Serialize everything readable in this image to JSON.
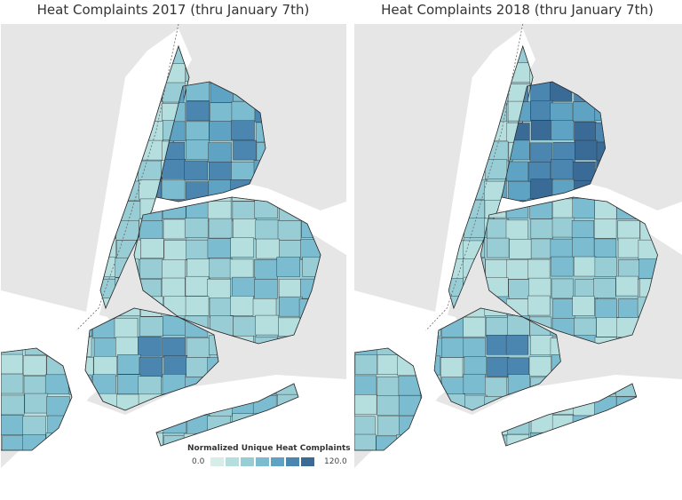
{
  "panels": [
    {
      "title": "Heat Complaints 2017 (thru January 7th)",
      "year": "2017"
    },
    {
      "title": "Heat Complaints 2018 (thru January 7th)",
      "year": "2018"
    }
  ],
  "legend": {
    "title": "Normalized Unique Heat Complaints",
    "min_label": "0.0",
    "max_label": "120.0",
    "colors": [
      "#d6ede8",
      "#b5dede",
      "#98cdd6",
      "#7cbcd0",
      "#5fa3c4",
      "#4b86b0",
      "#3a6a96"
    ]
  },
  "colors": {
    "land_other": "#e6e6e6",
    "water": "#ffffff",
    "park": "#dcdcdc",
    "border": "#2a2a2a"
  }
}
